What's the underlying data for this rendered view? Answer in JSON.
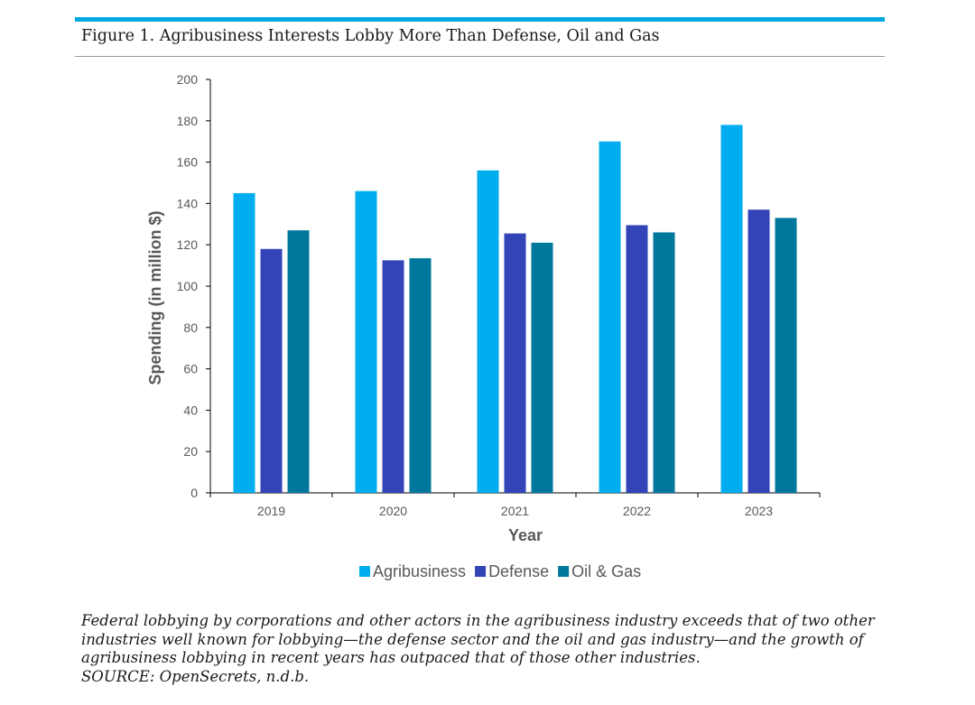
{
  "figure": {
    "title": "Figure 1. Agribusiness Interests Lobby More Than Defense, Oil and Gas",
    "caption": "Federal lobbying by corporations and other actors in the agribusiness industry exceeds that of two other industries well known for lobbying—the defense sector and the oil and gas industry—and the growth of agribusiness lobbying in recent years has outpaced that of those other industries.",
    "source": "SOURCE: OpenSecrets, n.d.b."
  },
  "colors": {
    "accent_rule": "#00a9e0",
    "text": "#595959"
  },
  "chart_data": {
    "type": "bar",
    "xlabel": "Year",
    "ylabel": "Spending (in million $)",
    "categories": [
      "2019",
      "2020",
      "2021",
      "2022",
      "2023"
    ],
    "ylim": [
      0,
      200
    ],
    "yticks": [
      0,
      20,
      40,
      60,
      80,
      100,
      120,
      140,
      160,
      180,
      200
    ],
    "grid": false,
    "legend_position": "bottom",
    "series": [
      {
        "name": "Agribusiness",
        "color": "#00aeef",
        "values": [
          145,
          146,
          156,
          170,
          178
        ]
      },
      {
        "name": "Defense",
        "color": "#3343b8",
        "values": [
          118,
          112.5,
          125.5,
          129.5,
          137
        ]
      },
      {
        "name": "Oil & Gas",
        "color": "#00789e",
        "values": [
          127,
          113.5,
          121,
          126,
          133
        ]
      }
    ]
  }
}
